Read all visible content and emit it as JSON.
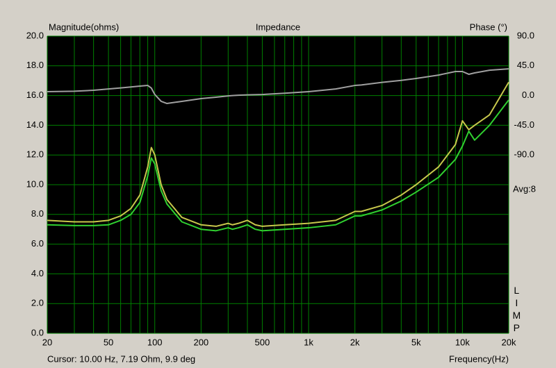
{
  "chart_data": {
    "type": "line",
    "title": "Impedance",
    "ylabel": "Magnitude(ohms)",
    "y2label": "Phase (°)",
    "xlabel": "Frequency(Hz)",
    "annotation": "Avg:8",
    "status": "Cursor: 10.00 Hz, 7.19 Ohm, 9.9 deg",
    "brand": "LIMP",
    "xscale": "log",
    "grid": true,
    "xlim": [
      20,
      20000
    ],
    "xticks": [
      20,
      50,
      100,
      200,
      500,
      {
        "value": 1000,
        "label": "1k"
      },
      {
        "value": 2000,
        "label": "2k"
      },
      {
        "value": 5000,
        "label": "5k"
      },
      {
        "value": 10000,
        "label": "10k"
      },
      {
        "value": 20000,
        "label": "20k"
      }
    ],
    "ylim": [
      0,
      20
    ],
    "yticks": [
      {
        "value": 0,
        "label": "0.0"
      },
      {
        "value": 2,
        "label": "2.0"
      },
      {
        "value": 4,
        "label": "4.0"
      },
      {
        "value": 6,
        "label": "6.0"
      },
      {
        "value": 8,
        "label": "8.0"
      },
      {
        "value": 10,
        "label": "10.0"
      },
      {
        "value": 12,
        "label": "12.0"
      },
      {
        "value": 14,
        "label": "14.0"
      },
      {
        "value": 16,
        "label": "16.0"
      },
      {
        "value": 18,
        "label": "18.0"
      },
      {
        "value": 20,
        "label": "20.0"
      }
    ],
    "y2lim": [
      -360,
      90
    ],
    "y2ticks": [
      {
        "value": 90,
        "label": "90.0"
      },
      {
        "value": 45,
        "label": "45.0"
      },
      {
        "value": 0,
        "label": "0.0"
      },
      {
        "value": -45,
        "label": "-45.0"
      },
      {
        "value": -90,
        "label": "-90.0"
      }
    ],
    "x": [
      20,
      30,
      40,
      50,
      60,
      70,
      80,
      90,
      95,
      100,
      110,
      120,
      150,
      200,
      250,
      300,
      320,
      350,
      400,
      450,
      500,
      700,
      1000,
      1500,
      2000,
      2200,
      3000,
      4000,
      5000,
      7000,
      9000,
      10000,
      11000,
      12000,
      15000,
      20000
    ],
    "series": [
      {
        "color": "#c8c84c",
        "values": [
          7.6,
          7.5,
          7.5,
          7.6,
          7.9,
          8.4,
          9.3,
          11.2,
          12.5,
          12.0,
          10.0,
          9.0,
          7.8,
          7.3,
          7.2,
          7.4,
          7.3,
          7.4,
          7.6,
          7.3,
          7.2,
          7.3,
          7.4,
          7.6,
          8.2,
          8.2,
          8.6,
          9.3,
          10.0,
          11.2,
          12.7,
          14.3,
          13.7,
          14.0,
          14.7,
          16.9
        ]
      },
      {
        "color": "#30d030",
        "values": [
          7.3,
          7.25,
          7.25,
          7.3,
          7.6,
          8.0,
          8.8,
          10.6,
          11.8,
          11.4,
          9.6,
          8.7,
          7.5,
          7.0,
          6.9,
          7.1,
          7.0,
          7.1,
          7.3,
          7.0,
          6.9,
          7.0,
          7.1,
          7.3,
          7.9,
          7.9,
          8.3,
          8.9,
          9.5,
          10.5,
          11.7,
          12.6,
          13.6,
          13.0,
          14.0,
          15.7
        ]
      },
      {
        "color": "#a0a0a0",
        "axis": "y2",
        "values": [
          5.9,
          6.5,
          8,
          10,
          11.5,
          13,
          14.3,
          15.3,
          11.3,
          1.6,
          -8.8,
          -12,
          -8.8,
          -4.6,
          -2.5,
          -0.5,
          0,
          0.5,
          1,
          1.3,
          1.6,
          3.5,
          5.9,
          10,
          15.3,
          16,
          20,
          23,
          25.9,
          31,
          36.4,
          36.4,
          32.2,
          34.3,
          38.4,
          40.5
        ]
      }
    ]
  }
}
